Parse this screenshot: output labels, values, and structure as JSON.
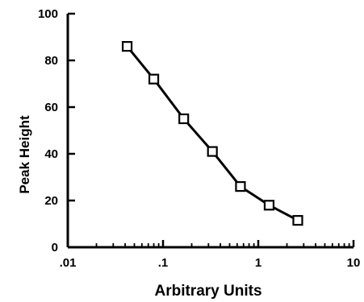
{
  "chart_data": {
    "type": "line",
    "title": "",
    "xlabel": "Arbitrary Units",
    "ylabel": "Peak Height",
    "x_scale": "log",
    "xlim": [
      0.01,
      10
    ],
    "ylim": [
      0,
      100
    ],
    "x_ticks": [
      {
        "value": 0.01,
        "label": ".01"
      },
      {
        "value": 0.1,
        "label": ".1"
      },
      {
        "value": 1,
        "label": "1"
      },
      {
        "value": 10,
        "label": "10"
      }
    ],
    "y_ticks": [
      {
        "value": 0,
        "label": "0"
      },
      {
        "value": 20,
        "label": "20"
      },
      {
        "value": 40,
        "label": "40"
      },
      {
        "value": 60,
        "label": "60"
      },
      {
        "value": 80,
        "label": "80"
      },
      {
        "value": 100,
        "label": "100"
      }
    ],
    "grid": false,
    "marker": "open-square",
    "series": [
      {
        "x": [
          0.042,
          0.08,
          0.165,
          0.33,
          0.65,
          1.3,
          2.6
        ],
        "y": [
          86,
          72,
          55,
          41,
          26,
          18,
          11.5
        ]
      }
    ]
  }
}
